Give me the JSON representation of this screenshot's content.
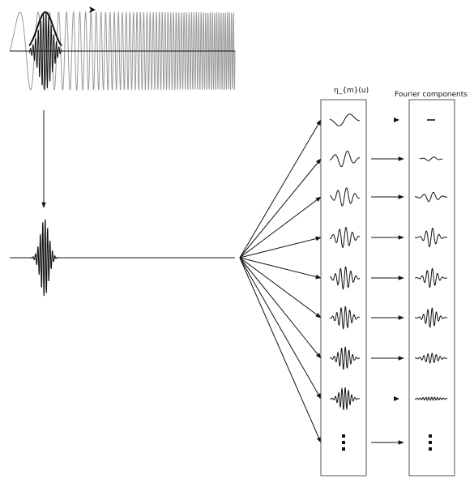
{
  "labels": {
    "basis_column": "η_{m}(u)",
    "fourier_column": "Fourier components"
  },
  "rows": [
    {
      "id": 1,
      "kind": "wave",
      "basis_freq": 1,
      "fourier_type": "dash"
    },
    {
      "id": 2,
      "kind": "wave",
      "basis_freq": 2,
      "fourier_type": "tiny"
    },
    {
      "id": 3,
      "kind": "wave",
      "basis_freq": 3,
      "fourier_type": "small"
    },
    {
      "id": 4,
      "kind": "wave",
      "basis_freq": 4,
      "fourier_type": "med"
    },
    {
      "id": 5,
      "kind": "wave",
      "basis_freq": 5,
      "fourier_type": "med"
    },
    {
      "id": 6,
      "kind": "wave",
      "basis_freq": 6,
      "fourier_type": "med"
    },
    {
      "id": 7,
      "kind": "wave",
      "basis_freq": 7,
      "fourier_type": "small"
    },
    {
      "id": 8,
      "kind": "wave",
      "basis_freq": 8,
      "fourier_type": "hf"
    },
    {
      "id": 9,
      "kind": "ellipsis"
    }
  ],
  "colors": {
    "ink": "#111111",
    "signal_grey": "#9a9a9a",
    "panel_border": "#555555"
  },
  "icons": [
    "arrow-icon",
    "ellipsis-icon"
  ]
}
